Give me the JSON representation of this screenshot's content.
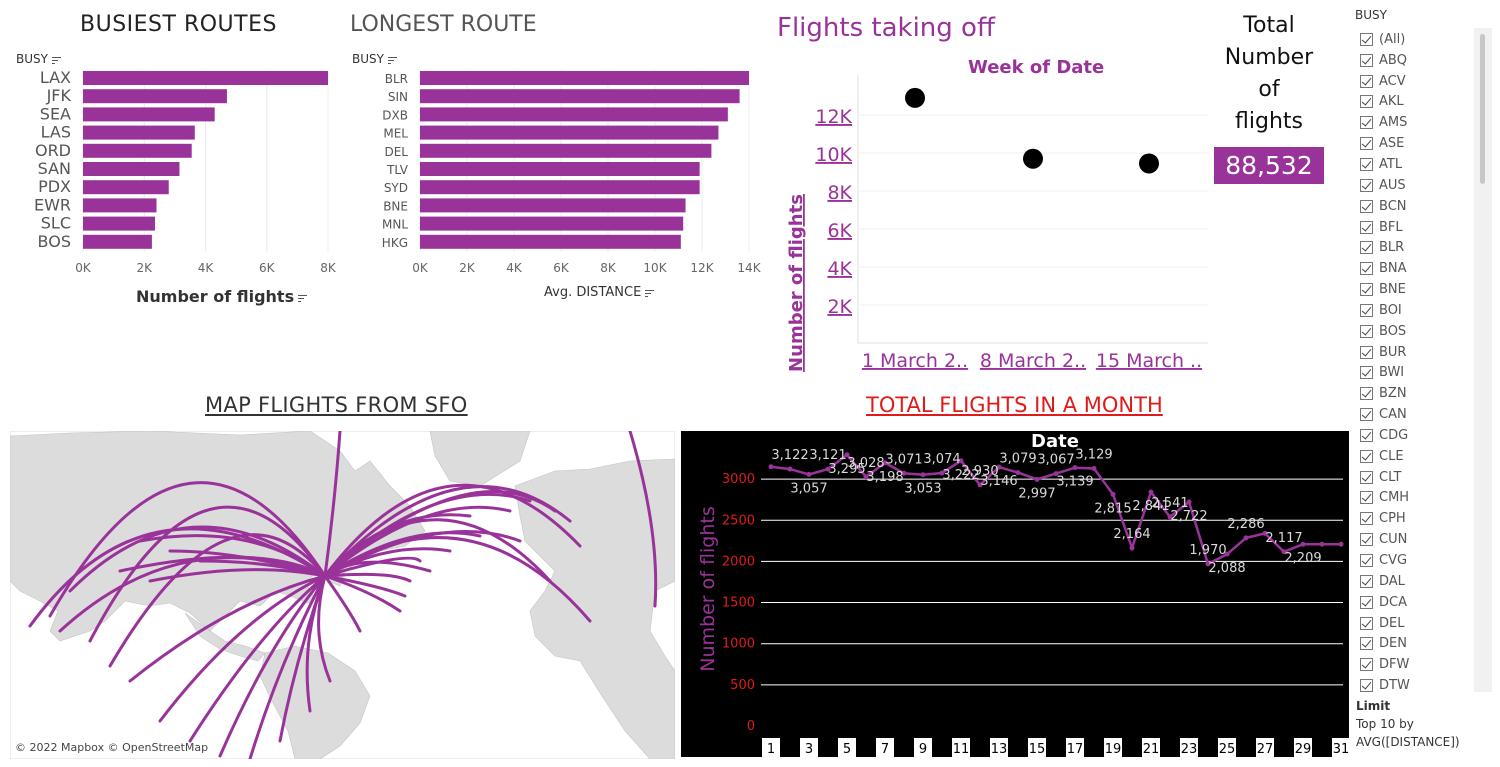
{
  "busiest": {
    "title": "BUSIEST ROUTES",
    "dim_label": "BUSY",
    "x_title": "Number of flights",
    "ticks": [
      "0K",
      "2K",
      "4K",
      "6K",
      "8K"
    ]
  },
  "longest": {
    "title": "LONGEST ROUTE",
    "dim_label": "BUSY",
    "x_title": "Avg. DISTANCE",
    "ticks": [
      "0K",
      "2K",
      "4K",
      "6K",
      "8K",
      "10K",
      "12K",
      "14K"
    ]
  },
  "takeoff": {
    "title": "Flights taking off",
    "col_title": "Week of Date",
    "y_title": "Number of flights",
    "y_ticks": [
      "2K",
      "4K",
      "6K",
      "8K",
      "10K",
      "12K"
    ],
    "x_labels": [
      "1 March 2..",
      "8 March 2..",
      "15 March .."
    ]
  },
  "kpi": {
    "label_lines": [
      "Total",
      "Number",
      "of",
      "flights"
    ],
    "value": "88,532"
  },
  "map": {
    "title": "MAP FLIGHTS FROM SFO",
    "credit": "© 2022 Mapbox © OpenStreetMap"
  },
  "month": {
    "title": "TOTAL FLIGHTS IN A MONTH",
    "col_title": "Date",
    "y_title": "Number of flights",
    "y_ticks": [
      "0",
      "500",
      "1000",
      "1500",
      "2000",
      "2500",
      "3000"
    ],
    "x_ticks": [
      "1",
      "3",
      "5",
      "7",
      "9",
      "11",
      "13",
      "15",
      "17",
      "19",
      "21",
      "23",
      "25",
      "27",
      "29",
      "31"
    ]
  },
  "filter": {
    "title": "BUSY",
    "items": [
      "(All)",
      "ABQ",
      "ACV",
      "AKL",
      "AMS",
      "ASE",
      "ATL",
      "AUS",
      "BCN",
      "BFL",
      "BLR",
      "BNA",
      "BNE",
      "BOI",
      "BOS",
      "BUR",
      "BWI",
      "BZN",
      "CAN",
      "CDG",
      "CLE",
      "CLT",
      "CMH",
      "CPH",
      "CUN",
      "CVG",
      "DAL",
      "DCA",
      "DEL",
      "DEN",
      "DFW",
      "DTW"
    ]
  },
  "limit": {
    "title": "Limit",
    "line1": "Top 10 by",
    "line2": "AVG([DISTANCE])"
  },
  "colors": {
    "accent": "#993399",
    "month_title": "#e01b1b",
    "dark_bg": "#000000"
  },
  "chart_data": [
    {
      "type": "bar",
      "orientation": "horizontal",
      "title": "BUSIEST ROUTES",
      "xlabel": "Number of flights",
      "categories": [
        "LAX",
        "JFK",
        "SEA",
        "LAS",
        "ORD",
        "SAN",
        "PDX",
        "EWR",
        "SLC",
        "BOS"
      ],
      "values": [
        8000,
        4700,
        4300,
        3650,
        3550,
        3150,
        2800,
        2400,
        2350,
        2250
      ],
      "xlim": [
        0,
        8000
      ]
    },
    {
      "type": "bar",
      "orientation": "horizontal",
      "title": "LONGEST ROUTE",
      "xlabel": "Avg. DISTANCE",
      "categories": [
        "BLR",
        "SIN",
        "DXB",
        "MEL",
        "DEL",
        "TLV",
        "SYD",
        "BNE",
        "MNL",
        "HKG"
      ],
      "values": [
        14000,
        13600,
        13100,
        12700,
        12400,
        11900,
        11900,
        11300,
        11200,
        11100
      ],
      "xlim": [
        0,
        14000
      ]
    },
    {
      "type": "scatter",
      "title": "Flights taking off",
      "xlabel": "Week of Date",
      "ylabel": "Number of flights",
      "categories": [
        "1 March 2..",
        "8 March 2..",
        "15 March .."
      ],
      "values": [
        12900,
        9700,
        9450
      ],
      "ylim": [
        0,
        14000
      ]
    },
    {
      "type": "line",
      "title": "TOTAL FLIGHTS IN A MONTH",
      "xlabel": "Date",
      "ylabel": "Number of flights",
      "x": [
        1,
        2,
        3,
        4,
        5,
        6,
        7,
        8,
        9,
        10,
        11,
        12,
        13,
        14,
        15,
        16,
        17,
        18,
        19,
        20,
        21,
        22,
        23,
        24,
        25,
        26,
        27,
        28,
        29,
        30,
        31
      ],
      "values": [
        3150,
        3122,
        3057,
        3121,
        3295,
        3028,
        3198,
        3071,
        3053,
        3074,
        3222,
        2930,
        3146,
        3079,
        2997,
        3067,
        3139,
        3129,
        2815,
        2164,
        2841,
        2541,
        2722,
        1970,
        2088,
        2286,
        2340,
        2117,
        2209,
        2209,
        2209
      ],
      "labels": [
        "",
        "3,122",
        "3,057",
        "3,121",
        "3,295",
        "3,028",
        "3,198",
        "3,071",
        "3,053",
        "3,074",
        "3,222",
        "2,930",
        "3,146",
        "3,079",
        "2,997",
        "3,067",
        "3,139",
        "3,129",
        "2,815",
        "2,164",
        "2,841",
        "2,541",
        "2,722",
        "1,970",
        "2,088",
        "2,286",
        "",
        "2,117",
        "2,209",
        "",
        ""
      ],
      "ylim": [
        0,
        3300
      ]
    }
  ]
}
